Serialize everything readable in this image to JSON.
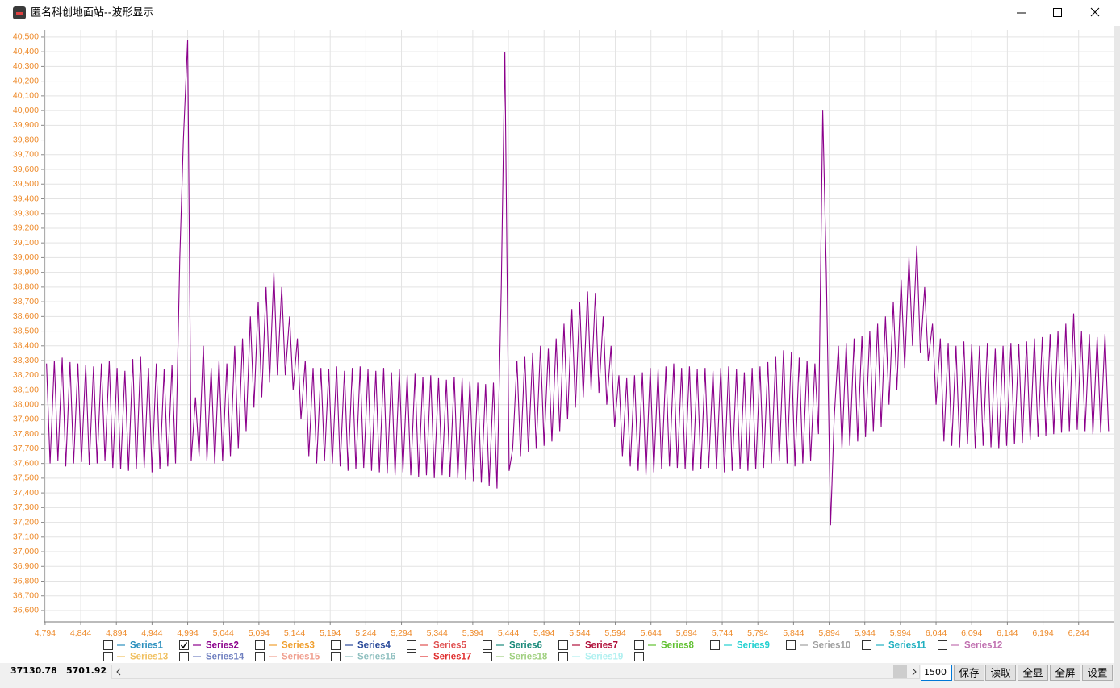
{
  "window": {
    "title": "匿名科创地面站--波形显示",
    "status": [
      "37130.78",
      "5701.92"
    ],
    "input": "1500",
    "buttons": [
      "保存",
      "读取",
      "全显",
      "全屏",
      "设置"
    ]
  },
  "chart_data": {
    "type": "line",
    "grid": true,
    "xlim": [
      4793,
      6293
    ],
    "ylim": [
      36523,
      40549
    ],
    "xticks": [
      {
        "value": 4794,
        "label": "4,794"
      },
      {
        "value": 4844,
        "label": "4,844"
      },
      {
        "value": 4894,
        "label": "4,894"
      },
      {
        "value": 4944,
        "label": "4,944"
      },
      {
        "value": 4994,
        "label": "4,994"
      },
      {
        "value": 5044,
        "label": "5,044"
      },
      {
        "value": 5094,
        "label": "5,094"
      },
      {
        "value": 5144,
        "label": "5,144"
      },
      {
        "value": 5194,
        "label": "5,194"
      },
      {
        "value": 5244,
        "label": "5,244"
      },
      {
        "value": 5294,
        "label": "5,294"
      },
      {
        "value": 5344,
        "label": "5,344"
      },
      {
        "value": 5394,
        "label": "5,394"
      },
      {
        "value": 5444,
        "label": "5,444"
      },
      {
        "value": 5494,
        "label": "5,494"
      },
      {
        "value": 5544,
        "label": "5,544"
      },
      {
        "value": 5594,
        "label": "5,594"
      },
      {
        "value": 5644,
        "label": "5,644"
      },
      {
        "value": 5694,
        "label": "5,694"
      },
      {
        "value": 5744,
        "label": "5,744"
      },
      {
        "value": 5794,
        "label": "5,794"
      },
      {
        "value": 5844,
        "label": "5,844"
      },
      {
        "value": 5894,
        "label": "5,894"
      },
      {
        "value": 5944,
        "label": "5,944"
      },
      {
        "value": 5994,
        "label": "5,994"
      },
      {
        "value": 6044,
        "label": "6,044"
      },
      {
        "value": 6094,
        "label": "6,094"
      },
      {
        "value": 6144,
        "label": "6,144"
      },
      {
        "value": 6194,
        "label": "6,194"
      },
      {
        "value": 6244,
        "label": "6,244"
      }
    ],
    "yticks": [
      {
        "value": 36600,
        "label": "36,600"
      },
      {
        "value": 36700,
        "label": "36,700"
      },
      {
        "value": 36800,
        "label": "36,800"
      },
      {
        "value": 36900,
        "label": "36,900"
      },
      {
        "value": 37000,
        "label": "37,000"
      },
      {
        "value": 37100,
        "label": "37,100"
      },
      {
        "value": 37200,
        "label": "37,200"
      },
      {
        "value": 37300,
        "label": "37,300"
      },
      {
        "value": 37400,
        "label": "37,400"
      },
      {
        "value": 37500,
        "label": "37,500"
      },
      {
        "value": 37600,
        "label": "37,600"
      },
      {
        "value": 37700,
        "label": "37,700"
      },
      {
        "value": 37800,
        "label": "37,800"
      },
      {
        "value": 37900,
        "label": "37,900"
      },
      {
        "value": 38000,
        "label": "38,000"
      },
      {
        "value": 38100,
        "label": "38,100"
      },
      {
        "value": 38200,
        "label": "38,200"
      },
      {
        "value": 38300,
        "label": "38,300"
      },
      {
        "value": 38400,
        "label": "38,400"
      },
      {
        "value": 38500,
        "label": "38,500"
      },
      {
        "value": 38600,
        "label": "38,600"
      },
      {
        "value": 38700,
        "label": "38,700"
      },
      {
        "value": 38800,
        "label": "38,800"
      },
      {
        "value": 38900,
        "label": "38,900"
      },
      {
        "value": 39000,
        "label": "39,000"
      },
      {
        "value": 39100,
        "label": "39,100"
      },
      {
        "value": 39200,
        "label": "39,200"
      },
      {
        "value": 39300,
        "label": "39,300"
      },
      {
        "value": 39400,
        "label": "39,400"
      },
      {
        "value": 39500,
        "label": "39,500"
      },
      {
        "value": 39600,
        "label": "39,600"
      },
      {
        "value": 39700,
        "label": "39,700"
      },
      {
        "value": 39800,
        "label": "39,800"
      },
      {
        "value": 39900,
        "label": "39,900"
      },
      {
        "value": 40000,
        "label": "40,000"
      },
      {
        "value": 40100,
        "label": "40,100"
      },
      {
        "value": 40200,
        "label": "40,200"
      },
      {
        "value": 40300,
        "label": "40,300"
      },
      {
        "value": 40400,
        "label": "40,400"
      },
      {
        "value": 40500,
        "label": "40,500"
      }
    ],
    "series": [
      {
        "name": "Series1",
        "color": "#2a8fbd",
        "checked": false
      },
      {
        "name": "Series2",
        "color": "#8b008b",
        "checked": true,
        "x": [
          4796,
          4801,
          4807,
          4812,
          4818,
          4823,
          4829,
          4834,
          4840,
          4845,
          4851,
          4856,
          4862,
          4867,
          4873,
          4878,
          4884,
          4889,
          4895,
          4900,
          4906,
          4911,
          4917,
          4922,
          4928,
          4933,
          4939,
          4944,
          4950,
          4955,
          4961,
          4966,
          4972,
          4977,
          4983,
          4988,
          4994,
          4999,
          5005,
          5010,
          5016,
          5021,
          5027,
          5032,
          5038,
          5043,
          5049,
          5054,
          5060,
          5065,
          5071,
          5076,
          5082,
          5087,
          5093,
          5098,
          5104,
          5109,
          5115,
          5120,
          5126,
          5131,
          5137,
          5142,
          5148,
          5153,
          5159,
          5164,
          5170,
          5175,
          5181,
          5186,
          5192,
          5197,
          5203,
          5208,
          5214,
          5219,
          5225,
          5230,
          5236,
          5241,
          5247,
          5252,
          5258,
          5263,
          5269,
          5274,
          5280,
          5285,
          5291,
          5296,
          5302,
          5307,
          5313,
          5318,
          5324,
          5329,
          5335,
          5340,
          5346,
          5351,
          5357,
          5362,
          5368,
          5373,
          5379,
          5384,
          5390,
          5395,
          5401,
          5406,
          5412,
          5417,
          5423,
          5428,
          5434,
          5439,
          5445,
          5450,
          5456,
          5461,
          5467,
          5472,
          5478,
          5483,
          5489,
          5494,
          5500,
          5505,
          5511,
          5516,
          5522,
          5527,
          5533,
          5538,
          5544,
          5549,
          5555,
          5560,
          5566,
          5571,
          5577,
          5582,
          5588,
          5593,
          5599,
          5604,
          5610,
          5615,
          5621,
          5626,
          5632,
          5637,
          5643,
          5648,
          5654,
          5659,
          5665,
          5670,
          5676,
          5681,
          5687,
          5692,
          5698,
          5703,
          5709,
          5714,
          5720,
          5725,
          5731,
          5736,
          5742,
          5747,
          5753,
          5758,
          5764,
          5769,
          5775,
          5780,
          5786,
          5791,
          5797,
          5802,
          5808,
          5813,
          5819,
          5824,
          5830,
          5835,
          5841,
          5846,
          5852,
          5857,
          5863,
          5868,
          5874,
          5879,
          5885,
          5890,
          5896,
          5901,
          5907,
          5912,
          5918,
          5923,
          5929,
          5934,
          5940,
          5945,
          5951,
          5956,
          5962,
          5967,
          5973,
          5978,
          5984,
          5989,
          5995,
          6000,
          6006,
          6011,
          6017,
          6022,
          6028,
          6033,
          6039,
          6044,
          6050,
          6055,
          6061,
          6066,
          6072,
          6077,
          6083,
          6088,
          6094,
          6099,
          6105,
          6110,
          6116,
          6121,
          6127,
          6132,
          6138,
          6143,
          6149,
          6154,
          6160,
          6165,
          6171,
          6176,
          6182,
          6187,
          6193,
          6198,
          6204,
          6209,
          6215,
          6220,
          6226,
          6231,
          6237,
          6242,
          6248,
          6253,
          6259,
          6264,
          6270,
          6275,
          6281,
          6286
        ],
        "values": [
          38280,
          37600,
          38300,
          37620,
          38320,
          37580,
          38290,
          37600,
          38280,
          37610,
          38270,
          37590,
          38260,
          37600,
          38280,
          37620,
          38300,
          37570,
          38250,
          37560,
          38230,
          37550,
          38310,
          37560,
          38330,
          37570,
          38250,
          37540,
          38280,
          37560,
          38240,
          37580,
          38270,
          37600,
          39000,
          39800,
          40480,
          37620,
          38050,
          37650,
          38400,
          37620,
          38250,
          37600,
          38300,
          37620,
          38280,
          37650,
          38400,
          37700,
          38450,
          37820,
          38600,
          37980,
          38700,
          38050,
          38800,
          38150,
          38900,
          38200,
          38800,
          38200,
          38600,
          38100,
          38450,
          37900,
          38300,
          37650,
          38250,
          37600,
          38250,
          37620,
          38240,
          37600,
          38260,
          37580,
          38230,
          37550,
          38250,
          37560,
          38260,
          37570,
          38240,
          37550,
          38230,
          37540,
          38250,
          37530,
          38220,
          37520,
          38240,
          37540,
          38200,
          37520,
          38210,
          37510,
          38190,
          37520,
          38200,
          37500,
          38180,
          37520,
          38170,
          37510,
          38190,
          37500,
          38180,
          37490,
          38160,
          37480,
          38150,
          37470,
          38140,
          37450,
          38150,
          37430,
          38800,
          40400,
          37550,
          37700,
          38300,
          37650,
          38330,
          37680,
          38350,
          37700,
          38400,
          37720,
          38380,
          37750,
          38450,
          37820,
          38550,
          37900,
          38650,
          37980,
          38700,
          38050,
          38770,
          38100,
          38760,
          38080,
          38600,
          38000,
          38400,
          37850,
          38200,
          37650,
          38180,
          37580,
          38200,
          37550,
          38220,
          37520,
          38250,
          37540,
          38240,
          37560,
          38260,
          37580,
          38280,
          37570,
          38250,
          37560,
          38260,
          37550,
          38240,
          37560,
          38250,
          37570,
          38230,
          37560,
          38250,
          37540,
          38260,
          37550,
          38240,
          37560,
          38220,
          37550,
          38250,
          37560,
          38260,
          37570,
          38290,
          37600,
          38330,
          37620,
          38370,
          37600,
          38360,
          37580,
          38320,
          37600,
          38300,
          37620,
          38280,
          37800,
          40000,
          38900,
          37180,
          37900,
          38400,
          37700,
          38420,
          37720,
          38450,
          37750,
          38470,
          37780,
          38500,
          37820,
          38550,
          37850,
          38600,
          38000,
          38700,
          38100,
          38850,
          38250,
          39000,
          38400,
          39080,
          38350,
          38800,
          38300,
          38550,
          38000,
          38450,
          37750,
          38420,
          37720,
          38400,
          37710,
          38430,
          37730,
          38410,
          37700,
          38400,
          37720,
          38420,
          37710,
          38380,
          37700,
          38400,
          37720,
          38420,
          37730,
          38410,
          37740,
          38430,
          37760,
          38450,
          37780,
          38460,
          37790,
          38480,
          37800,
          38500,
          37810,
          38550,
          37820,
          38620,
          37830,
          38500,
          37820,
          38480,
          37800,
          38460,
          37810,
          38480,
          37820
        ]
      },
      {
        "name": "Series3",
        "color": "#f0a030",
        "checked": false
      },
      {
        "name": "Series4",
        "color": "#2a4a9a",
        "checked": false
      },
      {
        "name": "Series5",
        "color": "#e05050",
        "checked": false
      },
      {
        "name": "Series6",
        "color": "#1a8a7a",
        "checked": false
      },
      {
        "name": "Series7",
        "color": "#b0103a",
        "checked": false
      },
      {
        "name": "Series8",
        "color": "#60c030",
        "checked": false
      },
      {
        "name": "Series9",
        "color": "#20d0d0",
        "checked": false
      },
      {
        "name": "Series10",
        "color": "#a0a0a0",
        "checked": false
      },
      {
        "name": "Series11",
        "color": "#20b0c0",
        "checked": false
      },
      {
        "name": "Series12",
        "color": "#c070b0",
        "checked": false
      },
      {
        "name": "Series13",
        "color": "#f0c060",
        "checked": false
      },
      {
        "name": "Series14",
        "color": "#7080c0",
        "checked": false
      },
      {
        "name": "Series15",
        "color": "#f0a090",
        "checked": false
      },
      {
        "name": "Series16",
        "color": "#90c0c0",
        "checked": false
      },
      {
        "name": "Series17",
        "color": "#e03030",
        "checked": false
      },
      {
        "name": "Series18",
        "color": "#a0d080",
        "checked": false
      },
      {
        "name": "Series19",
        "color": "#b0f0f0",
        "checked": false
      }
    ]
  }
}
